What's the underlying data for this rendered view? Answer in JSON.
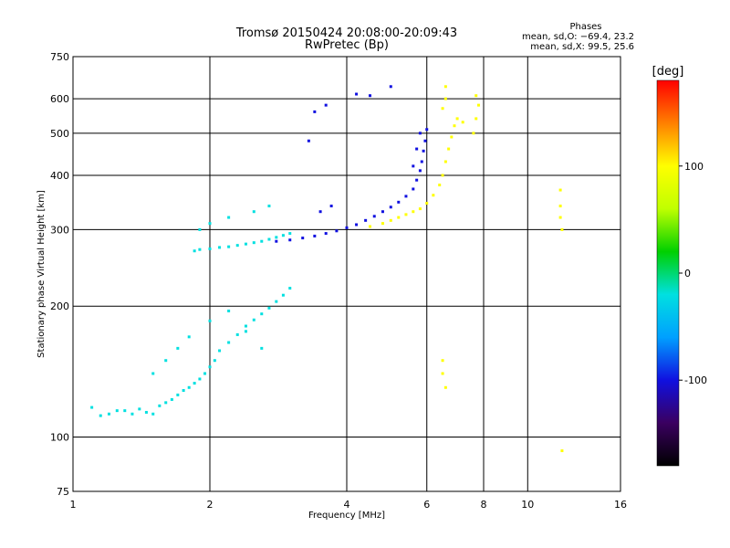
{
  "chart_data": {
    "type": "scatter",
    "title": "Tromsø 20150424 20:08:00-20:09:43",
    "subtitle": "RwPretec (Bp)",
    "xlabel": "Frequency [MHz]",
    "ylabel": "Stationary phase Virtual Height [km]",
    "x_scale": "log",
    "y_scale": "log",
    "xlim": [
      1,
      16
    ],
    "ylim": [
      75,
      750
    ],
    "x_ticks": [
      1,
      2,
      4,
      6,
      8,
      10,
      16
    ],
    "y_ticks": [
      75,
      100,
      200,
      300,
      400,
      500,
      600,
      750
    ],
    "grid": true,
    "phases_box": {
      "heading": "Phases",
      "line_o": "mean, sd,O: −69.4, 23.2",
      "line_x": "mean, sd,X:  99.5, 25.6"
    },
    "colorbar": {
      "label": "[deg]",
      "range": [
        -180,
        180
      ],
      "ticks": [
        100,
        0,
        -100
      ],
      "colors": [
        "#000000",
        "#3a0060",
        "#1010e0",
        "#00a0ff",
        "#00e0e0",
        "#00d000",
        "#c0ff00",
        "#ffff00",
        "#ff8000",
        "#ff0000"
      ]
    },
    "series": [
      {
        "points": [
          [
            1.1,
            117
          ],
          [
            1.15,
            112
          ],
          [
            1.2,
            113
          ],
          [
            1.25,
            115
          ],
          [
            1.3,
            115
          ],
          [
            1.35,
            113
          ],
          [
            1.4,
            116
          ],
          [
            1.45,
            114
          ],
          [
            1.5,
            113
          ],
          [
            1.55,
            118
          ],
          [
            1.6,
            120
          ],
          [
            1.65,
            122
          ],
          [
            1.7,
            125
          ],
          [
            1.75,
            128
          ],
          [
            1.8,
            130
          ],
          [
            1.85,
            133
          ],
          [
            1.9,
            136
          ],
          [
            1.95,
            140
          ],
          [
            2.0,
            145
          ],
          [
            2.05,
            150
          ],
          [
            2.1,
            158
          ],
          [
            2.2,
            165
          ],
          [
            2.3,
            172
          ],
          [
            2.4,
            180
          ],
          [
            2.5,
            186
          ],
          [
            2.6,
            192
          ],
          [
            2.7,
            198
          ],
          [
            2.8,
            205
          ],
          [
            2.9,
            212
          ],
          [
            3.0,
            220
          ],
          [
            1.85,
            268
          ],
          [
            1.9,
            270
          ],
          [
            2.0,
            271
          ],
          [
            2.1,
            273
          ],
          [
            2.2,
            274
          ],
          [
            2.3,
            276
          ],
          [
            2.4,
            278
          ],
          [
            2.5,
            280
          ],
          [
            2.6,
            282
          ],
          [
            2.7,
            285
          ],
          [
            2.8,
            288
          ],
          [
            2.9,
            291
          ],
          [
            3.0,
            294
          ],
          [
            1.9,
            300
          ],
          [
            2.0,
            310
          ],
          [
            2.2,
            320
          ],
          [
            2.5,
            330
          ],
          [
            2.7,
            340
          ],
          [
            1.5,
            140
          ],
          [
            1.6,
            150
          ],
          [
            1.7,
            160
          ],
          [
            1.8,
            170
          ],
          [
            2.0,
            185
          ],
          [
            2.2,
            195
          ],
          [
            2.4,
            175
          ],
          [
            2.6,
            160
          ]
        ],
        "phase": -40
      },
      {
        "points": [
          [
            2.8,
            282
          ],
          [
            3.0,
            284
          ],
          [
            3.2,
            287
          ],
          [
            3.4,
            290
          ],
          [
            3.6,
            294
          ],
          [
            3.8,
            298
          ],
          [
            4.0,
            303
          ],
          [
            4.2,
            308
          ],
          [
            4.4,
            315
          ],
          [
            4.6,
            322
          ],
          [
            4.8,
            330
          ],
          [
            5.0,
            338
          ],
          [
            5.2,
            347
          ],
          [
            5.4,
            358
          ],
          [
            5.6,
            372
          ],
          [
            5.7,
            390
          ],
          [
            5.8,
            410
          ],
          [
            5.85,
            430
          ],
          [
            5.9,
            455
          ],
          [
            5.95,
            480
          ],
          [
            6.0,
            510
          ],
          [
            5.6,
            420
          ],
          [
            5.7,
            460
          ],
          [
            5.8,
            500
          ],
          [
            3.5,
            330
          ],
          [
            3.7,
            340
          ],
          [
            4.5,
            610
          ],
          [
            4.2,
            615
          ],
          [
            5.0,
            640
          ],
          [
            3.4,
            560
          ],
          [
            3.6,
            580
          ],
          [
            3.3,
            480
          ]
        ],
        "phase": -110
      },
      {
        "points": [
          [
            4.5,
            305
          ],
          [
            4.8,
            310
          ],
          [
            5.0,
            315
          ],
          [
            5.2,
            320
          ],
          [
            5.4,
            325
          ],
          [
            5.6,
            330
          ],
          [
            5.8,
            335
          ],
          [
            6.0,
            345
          ],
          [
            6.2,
            360
          ],
          [
            6.4,
            380
          ],
          [
            6.5,
            400
          ],
          [
            6.6,
            430
          ],
          [
            6.7,
            460
          ],
          [
            6.8,
            490
          ],
          [
            6.9,
            520
          ],
          [
            7.0,
            540
          ],
          [
            6.5,
            570
          ],
          [
            6.6,
            600
          ],
          [
            6.6,
            640
          ],
          [
            7.6,
            500
          ],
          [
            7.7,
            540
          ],
          [
            7.8,
            580
          ],
          [
            7.7,
            610
          ],
          [
            7.2,
            530
          ],
          [
            11.8,
            320
          ],
          [
            11.8,
            340
          ],
          [
            11.8,
            370
          ],
          [
            11.9,
            300
          ],
          [
            6.5,
            150
          ],
          [
            6.5,
            140
          ],
          [
            6.6,
            130
          ],
          [
            11.9,
            93
          ]
        ],
        "phase": 95
      }
    ]
  }
}
